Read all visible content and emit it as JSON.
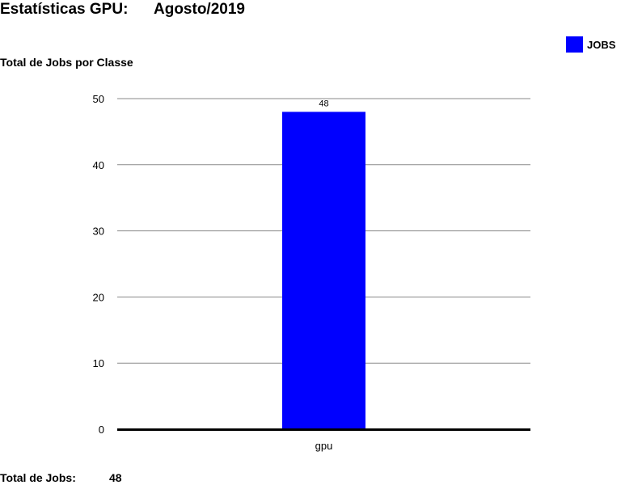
{
  "header": {
    "title": "Estatísticas GPU:",
    "period": "Agosto/2019"
  },
  "chart_heading": "Total de Jobs por Classe",
  "chart_data": {
    "type": "bar",
    "categories": [
      "gpu"
    ],
    "series": [
      {
        "name": "JOBS",
        "values": [
          48
        ],
        "color": "#0000ff"
      }
    ],
    "data_labels": [
      "48"
    ],
    "ylim": [
      0,
      50
    ],
    "yticks": [
      0,
      10,
      20,
      30,
      40,
      50
    ],
    "grid": true,
    "legend_position": "top-right"
  },
  "footer": {
    "total_label": "Total de Jobs:",
    "total_value": "48"
  }
}
